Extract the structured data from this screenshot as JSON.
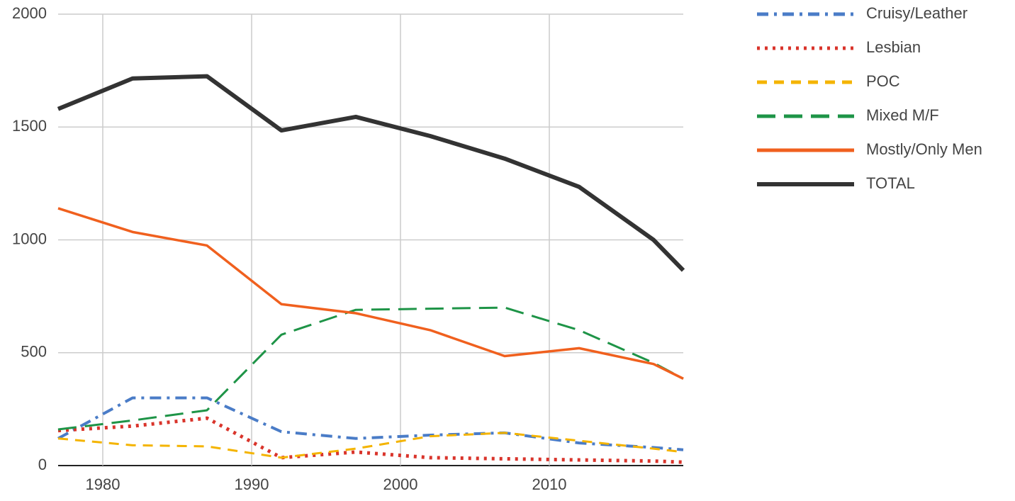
{
  "chart_data": {
    "type": "line",
    "x": [
      1977,
      1982,
      1987,
      1992,
      1997,
      2002,
      2007,
      2012,
      2017,
      2019
    ],
    "series": [
      {
        "name": "Cruisy/Leather",
        "color": "#4a7cc7",
        "style": "dash-dot",
        "values": [
          120,
          300,
          300,
          150,
          120,
          135,
          145,
          100,
          80,
          70
        ]
      },
      {
        "name": "Lesbian",
        "color": "#d9342b",
        "style": "dotted",
        "values": [
          155,
          175,
          210,
          35,
          60,
          35,
          30,
          25,
          20,
          15
        ]
      },
      {
        "name": "POC",
        "color": "#f4b400",
        "style": "dashed",
        "values": [
          120,
          90,
          85,
          35,
          75,
          130,
          145,
          110,
          75,
          60
        ]
      },
      {
        "name": "Mixed M/F",
        "color": "#1e9447",
        "style": "long-dashed",
        "values": [
          160,
          200,
          245,
          580,
          690,
          695,
          700,
          600,
          455,
          385
        ]
      },
      {
        "name": "Mostly/Only Men",
        "color": "#f0601e",
        "style": "solid",
        "values": [
          1140,
          1035,
          975,
          715,
          675,
          600,
          485,
          520,
          450,
          385
        ]
      },
      {
        "name": "TOTAL",
        "color": "#333333",
        "style": "heavy",
        "values": [
          1580,
          1715,
          1725,
          1485,
          1545,
          1460,
          1360,
          1235,
          1000,
          865
        ]
      }
    ],
    "xlim": [
      1977,
      2019
    ],
    "xticks": [
      1980,
      1990,
      2000,
      2010
    ],
    "ylim": [
      0,
      2000
    ],
    "yticks": [
      0,
      500,
      1000,
      1500,
      2000
    ],
    "grid": true,
    "legend": "right"
  }
}
